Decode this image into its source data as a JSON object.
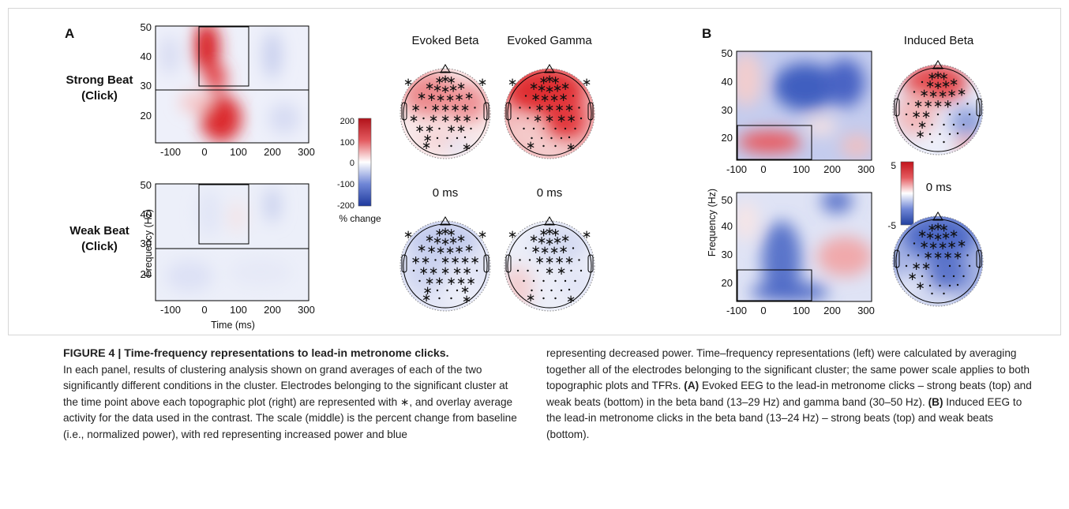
{
  "figure": {
    "panel_a_label": "A",
    "panel_b_label": "B",
    "strong_beat_label": [
      "Strong Beat",
      "(Click)"
    ],
    "weak_beat_label": [
      "Weak Beat",
      "(Click)"
    ],
    "evoked_beta_title": "Evoked Beta",
    "evoked_gamma_title": "Evoked Gamma",
    "induced_beta_title": "Induced Beta",
    "time_label_a1": "0 ms",
    "time_label_a2": "0 ms",
    "time_label_b": "0 ms",
    "xlabel": "Time (ms)",
    "ylabel": "Frequency (Hz)",
    "x_ticks": [
      "-100",
      "0",
      "100",
      "200",
      "300"
    ],
    "y_ticks": [
      "50",
      "40",
      "30",
      "20"
    ],
    "colorbar_a": {
      "ticks": [
        "200",
        "100",
        "0",
        "-100",
        "-200"
      ],
      "label": "% change"
    },
    "colorbar_b": {
      "ticks": [
        "5",
        "-5"
      ]
    },
    "colors": {
      "red": "#d7191c",
      "blue": "#2b4fb0",
      "white": "#ffffff"
    }
  },
  "caption": {
    "title": "FIGURE 4 | Time-frequency representations to lead-in metronome clicks.",
    "left_text": "In each panel, results of clustering analysis shown on grand averages of each of the two significantly different conditions in the cluster. Electrodes belonging to the significant cluster at the time point above each topographic plot (right) are represented with ∗, and overlay average activity for the data used in the contrast. The scale (middle) is the percent change from baseline (i.e., normalized power), with red representing increased power and blue",
    "right_text_1": "representing decreased power. Time–frequency representations (left) were calculated by averaging together all of the electrodes belonging to the significant cluster; the same power scale applies to both topographic plots and TFRs. ",
    "ref_a": "(A)",
    "right_text_2": " Evoked EEG to the lead-in metronome clicks – strong beats (top) and weak beats (bottom) in the beta band (13–29 Hz) and gamma band (30–50 Hz). ",
    "ref_b": "(B)",
    "right_text_3": " Induced EEG to the lead-in metronome clicks in the beta band (13–24 Hz) – strong beats (top) and weak beats (bottom)."
  }
}
